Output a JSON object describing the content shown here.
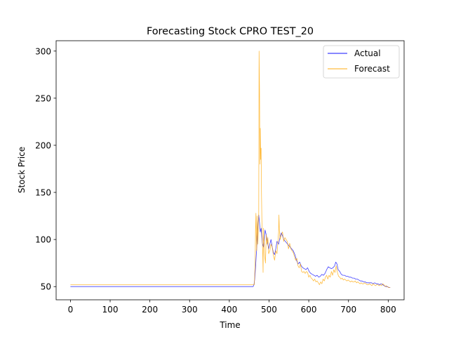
{
  "chart_data": {
    "type": "line",
    "title": "Forecasting Stock CPRO TEST_20",
    "xlabel": "Time",
    "ylabel": "Stock Price",
    "xlim": [
      -36,
      840
    ],
    "ylim": [
      36,
      311
    ],
    "xticks": [
      0,
      100,
      200,
      300,
      400,
      500,
      600,
      700,
      800
    ],
    "yticks": [
      50,
      100,
      150,
      200,
      250,
      300
    ],
    "grid": false,
    "legend_position": "top-right",
    "series": [
      {
        "name": "Actual",
        "color": "#0000ff",
        "points": [
          [
            0,
            50
          ],
          [
            100,
            50
          ],
          [
            200,
            50
          ],
          [
            300,
            50
          ],
          [
            400,
            50
          ],
          [
            460,
            50
          ],
          [
            462,
            52
          ],
          [
            464,
            58
          ],
          [
            466,
            70
          ],
          [
            468,
            85
          ],
          [
            470,
            98
          ],
          [
            472,
            112
          ],
          [
            474,
            126
          ],
          [
            476,
            118
          ],
          [
            478,
            108
          ],
          [
            480,
            112
          ],
          [
            483,
            96
          ],
          [
            486,
            92
          ],
          [
            488,
            100
          ],
          [
            490,
            110
          ],
          [
            493,
            105
          ],
          [
            496,
            98
          ],
          [
            499,
            90
          ],
          [
            502,
            95
          ],
          [
            505,
            100
          ],
          [
            508,
            92
          ],
          [
            511,
            86
          ],
          [
            514,
            84
          ],
          [
            517,
            90
          ],
          [
            520,
            98
          ],
          [
            524,
            95
          ],
          [
            528,
            103
          ],
          [
            531,
            107
          ],
          [
            534,
            104
          ],
          [
            537,
            100
          ],
          [
            541,
            98
          ],
          [
            545,
            96
          ],
          [
            549,
            94
          ],
          [
            553,
            92
          ],
          [
            557,
            90
          ],
          [
            561,
            88
          ],
          [
            565,
            84
          ],
          [
            569,
            78
          ],
          [
            573,
            74
          ],
          [
            577,
            76
          ],
          [
            581,
            72
          ],
          [
            585,
            70
          ],
          [
            589,
            69
          ],
          [
            593,
            68
          ],
          [
            597,
            70
          ],
          [
            601,
            66
          ],
          [
            605,
            64
          ],
          [
            609,
            63
          ],
          [
            613,
            62
          ],
          [
            617,
            61
          ],
          [
            621,
            62
          ],
          [
            625,
            60
          ],
          [
            629,
            61
          ],
          [
            633,
            63
          ],
          [
            637,
            62
          ],
          [
            641,
            64
          ],
          [
            645,
            68
          ],
          [
            649,
            71
          ],
          [
            653,
            70
          ],
          [
            657,
            69
          ],
          [
            661,
            70
          ],
          [
            665,
            72
          ],
          [
            668,
            76
          ],
          [
            671,
            74
          ],
          [
            674,
            68
          ],
          [
            678,
            66
          ],
          [
            682,
            63
          ],
          [
            686,
            62
          ],
          [
            690,
            62
          ],
          [
            694,
            61
          ],
          [
            698,
            61
          ],
          [
            702,
            60
          ],
          [
            706,
            60
          ],
          [
            710,
            59
          ],
          [
            714,
            59
          ],
          [
            718,
            58
          ],
          [
            722,
            58
          ],
          [
            726,
            57
          ],
          [
            730,
            56
          ],
          [
            734,
            56
          ],
          [
            738,
            55
          ],
          [
            742,
            55
          ],
          [
            746,
            54
          ],
          [
            750,
            54
          ],
          [
            754,
            54
          ],
          [
            758,
            54
          ],
          [
            762,
            53
          ],
          [
            766,
            54
          ],
          [
            770,
            53
          ],
          [
            774,
            53
          ],
          [
            778,
            52
          ],
          [
            782,
            53
          ],
          [
            786,
            52
          ],
          [
            790,
            51
          ],
          [
            794,
            50
          ],
          [
            798,
            50
          ],
          [
            802,
            49
          ],
          [
            805,
            49
          ]
        ]
      },
      {
        "name": "Forecast",
        "color": "#ffa500",
        "points": [
          [
            0,
            52
          ],
          [
            100,
            52
          ],
          [
            200,
            52
          ],
          [
            300,
            52
          ],
          [
            400,
            52
          ],
          [
            463,
            52
          ],
          [
            465,
            75
          ],
          [
            466,
            110
          ],
          [
            467,
            128
          ],
          [
            468,
            100
          ],
          [
            469,
            88
          ],
          [
            470,
            125
          ],
          [
            471,
            110
          ],
          [
            472,
            95
          ],
          [
            473,
            115
          ],
          [
            474,
            128
          ],
          [
            475,
            300
          ],
          [
            476,
            260
          ],
          [
            477,
            180
          ],
          [
            478,
            218
          ],
          [
            479,
            185
          ],
          [
            480,
            197
          ],
          [
            481,
            150
          ],
          [
            482,
            120
          ],
          [
            483,
            98
          ],
          [
            484,
            88
          ],
          [
            485,
            65
          ],
          [
            486,
            112
          ],
          [
            487,
            100
          ],
          [
            488,
            95
          ],
          [
            489,
            82
          ],
          [
            491,
            75
          ],
          [
            493,
            105
          ],
          [
            495,
            95
          ],
          [
            497,
            102
          ],
          [
            499,
            85
          ],
          [
            502,
            88
          ],
          [
            505,
            95
          ],
          [
            508,
            92
          ],
          [
            511,
            83
          ],
          [
            514,
            78
          ],
          [
            517,
            88
          ],
          [
            520,
            85
          ],
          [
            522,
            95
          ],
          [
            524,
            108
          ],
          [
            525,
            126
          ],
          [
            526,
            110
          ],
          [
            528,
            100
          ],
          [
            531,
            105
          ],
          [
            534,
            108
          ],
          [
            537,
            98
          ],
          [
            540,
            102
          ],
          [
            543,
            100
          ],
          [
            546,
            98
          ],
          [
            549,
            90
          ],
          [
            552,
            96
          ],
          [
            555,
            90
          ],
          [
            558,
            88
          ],
          [
            561,
            86
          ],
          [
            564,
            82
          ],
          [
            567,
            78
          ],
          [
            570,
            80
          ],
          [
            573,
            72
          ],
          [
            576,
            70
          ],
          [
            579,
            74
          ],
          [
            582,
            66
          ],
          [
            585,
            65
          ],
          [
            588,
            66
          ],
          [
            591,
            64
          ],
          [
            594,
            66
          ],
          [
            597,
            65
          ],
          [
            600,
            60
          ],
          [
            603,
            62
          ],
          [
            606,
            59
          ],
          [
            609,
            58
          ],
          [
            612,
            56
          ],
          [
            615,
            58
          ],
          [
            618,
            55
          ],
          [
            621,
            56
          ],
          [
            624,
            54
          ],
          [
            627,
            52
          ],
          [
            630,
            55
          ],
          [
            633,
            53
          ],
          [
            636,
            58
          ],
          [
            639,
            56
          ],
          [
            642,
            60
          ],
          [
            645,
            62
          ],
          [
            648,
            58
          ],
          [
            651,
            62
          ],
          [
            654,
            60
          ],
          [
            657,
            66
          ],
          [
            660,
            62
          ],
          [
            663,
            68
          ],
          [
            666,
            65
          ],
          [
            669,
            72
          ],
          [
            672,
            65
          ],
          [
            675,
            61
          ],
          [
            678,
            60
          ],
          [
            681,
            58
          ],
          [
            684,
            59
          ],
          [
            687,
            57
          ],
          [
            690,
            58
          ],
          [
            693,
            57
          ],
          [
            696,
            56
          ],
          [
            699,
            57
          ],
          [
            702,
            56
          ],
          [
            705,
            55
          ],
          [
            708,
            56
          ],
          [
            711,
            55
          ],
          [
            714,
            55
          ],
          [
            717,
            56
          ],
          [
            720,
            54
          ],
          [
            723,
            55
          ],
          [
            726,
            54
          ],
          [
            729,
            53
          ],
          [
            732,
            54
          ],
          [
            735,
            53
          ],
          [
            738,
            53
          ],
          [
            741,
            54
          ],
          [
            744,
            53
          ],
          [
            747,
            52
          ],
          [
            750,
            52
          ],
          [
            753,
            53
          ],
          [
            756,
            52
          ],
          [
            759,
            51
          ],
          [
            762,
            53
          ],
          [
            765,
            52
          ],
          [
            768,
            51
          ],
          [
            771,
            52
          ],
          [
            774,
            52
          ],
          [
            777,
            51
          ],
          [
            780,
            52
          ],
          [
            783,
            51
          ],
          [
            786,
            53
          ],
          [
            789,
            52
          ],
          [
            792,
            50
          ],
          [
            795,
            51
          ],
          [
            798,
            50
          ],
          [
            801,
            49
          ],
          [
            805,
            49
          ]
        ]
      }
    ]
  }
}
